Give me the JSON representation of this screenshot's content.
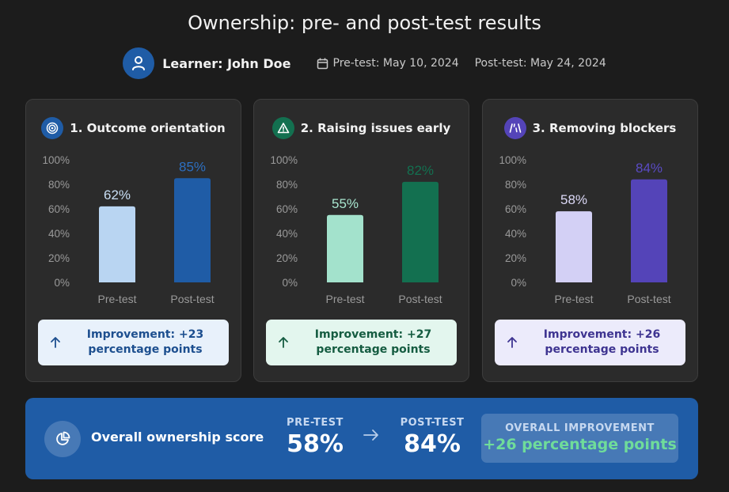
{
  "title": "Ownership: pre- and post-test results",
  "learner": "Learner: John Doe",
  "pre_date": "Pre-test: May 10, 2024",
  "post_date": "Post-test: May 24, 2024",
  "colors": {
    "background": "#1c1c1c",
    "card": "#2b2b2b",
    "summary": "#1f5ca6",
    "improvement_text": "#6fdc9a"
  },
  "cards": [
    {
      "title": "1. Outcome orientation",
      "icon": "target-icon",
      "icon_bg": "#1f5ca6",
      "pre_color": "#b9d5f2",
      "post_color": "#1f5ca6",
      "pre_label_color": "#c9dff5",
      "post_label_color": "#2d6fc0",
      "improvement": "Improvement: +23 percentage points",
      "imp_bg": "#e8f1fb",
      "imp_fg": "#1d4f8f"
    },
    {
      "title": "2. Raising issues early",
      "icon": "warning-icon",
      "icon_bg": "#137050",
      "pre_color": "#a3e2cc",
      "post_color": "#137050",
      "pre_label_color": "#a8e6cf",
      "post_label_color": "#137050",
      "improvement": "Improvement: +27 percentage points",
      "imp_bg": "#e3f6ee",
      "imp_fg": "#155c41"
    },
    {
      "title": "3. Removing blockers",
      "icon": "road-icon",
      "icon_bg": "#5444b8",
      "pre_color": "#d3d0f5",
      "post_color": "#5444b8",
      "pre_label_color": "#dcd9f7",
      "post_label_color": "#5a4bc4",
      "improvement": "Improvement: +26 percentage points",
      "imp_bg": "#ecebfb",
      "imp_fg": "#3e3491"
    }
  ],
  "chart_data": [
    {
      "type": "bar",
      "title": "1. Outcome orientation",
      "categories": [
        "Pre-test",
        "Post-test"
      ],
      "values": [
        62,
        85
      ],
      "data_labels": [
        "62%",
        "85%"
      ],
      "ylim": [
        0,
        100
      ],
      "yticks": [
        "0%",
        "20%",
        "40%",
        "60%",
        "80%",
        "100%"
      ],
      "grid": false
    },
    {
      "type": "bar",
      "title": "2. Raising issues early",
      "categories": [
        "Pre-test",
        "Post-test"
      ],
      "values": [
        55,
        82
      ],
      "data_labels": [
        "55%",
        "82%"
      ],
      "ylim": [
        0,
        100
      ],
      "yticks": [
        "0%",
        "20%",
        "40%",
        "60%",
        "80%",
        "100%"
      ],
      "grid": false
    },
    {
      "type": "bar",
      "title": "3. Removing blockers",
      "categories": [
        "Pre-test",
        "Post-test"
      ],
      "values": [
        58,
        84
      ],
      "data_labels": [
        "58%",
        "84%"
      ],
      "ylim": [
        0,
        100
      ],
      "yticks": [
        "0%",
        "20%",
        "40%",
        "60%",
        "80%",
        "100%"
      ],
      "grid": false
    }
  ],
  "summary": {
    "label": "Overall ownership score",
    "icon": "pie-chart-icon",
    "pre_label": "PRE-TEST",
    "pre_value": "58%",
    "post_label": "POST-TEST",
    "post_value": "84%",
    "overall_label": "OVERALL IMPROVEMENT",
    "overall_value": "+26 percentage points"
  }
}
